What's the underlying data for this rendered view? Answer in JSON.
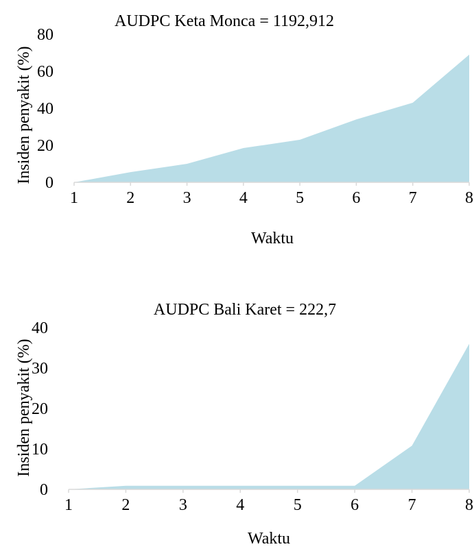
{
  "chart_data": [
    {
      "type": "area",
      "title": "AUDPC Keta Monca = 1192,912",
      "xlabel": "Waktu",
      "ylabel": "Insiden penyakit (%)",
      "x": [
        1,
        2,
        3,
        4,
        5,
        6,
        7,
        8
      ],
      "x_tick_labels": [
        "1",
        "2",
        "3",
        "4",
        "5",
        "6",
        "7",
        "8"
      ],
      "values": [
        0,
        5.5,
        10,
        18.5,
        23,
        34,
        43,
        69
      ],
      "ylim": [
        0,
        80
      ],
      "y_ticks": [
        0,
        20,
        40,
        60,
        80
      ],
      "y_tick_labels": [
        "0",
        "20",
        "40",
        "60",
        "80"
      ],
      "grid": false,
      "fill_color": "#b9dde7"
    },
    {
      "type": "area",
      "title": "AUDPC Bali Karet = 222,7",
      "xlabel": "Waktu",
      "ylabel": "Insiden penyakit (%)",
      "x": [
        1,
        2,
        3,
        4,
        5,
        6,
        7,
        8
      ],
      "x_tick_labels": [
        "1",
        "2",
        "3",
        "4",
        "5",
        "6",
        "7",
        "8"
      ],
      "values": [
        0,
        0.9,
        0.9,
        0.9,
        0.9,
        0.9,
        10.8,
        36
      ],
      "ylim": [
        0,
        40
      ],
      "y_ticks": [
        0,
        10,
        20,
        30,
        40
      ],
      "y_tick_labels": [
        "0",
        "10",
        "20",
        "30",
        "40"
      ],
      "grid": false,
      "fill_color": "#b9dde7"
    }
  ]
}
